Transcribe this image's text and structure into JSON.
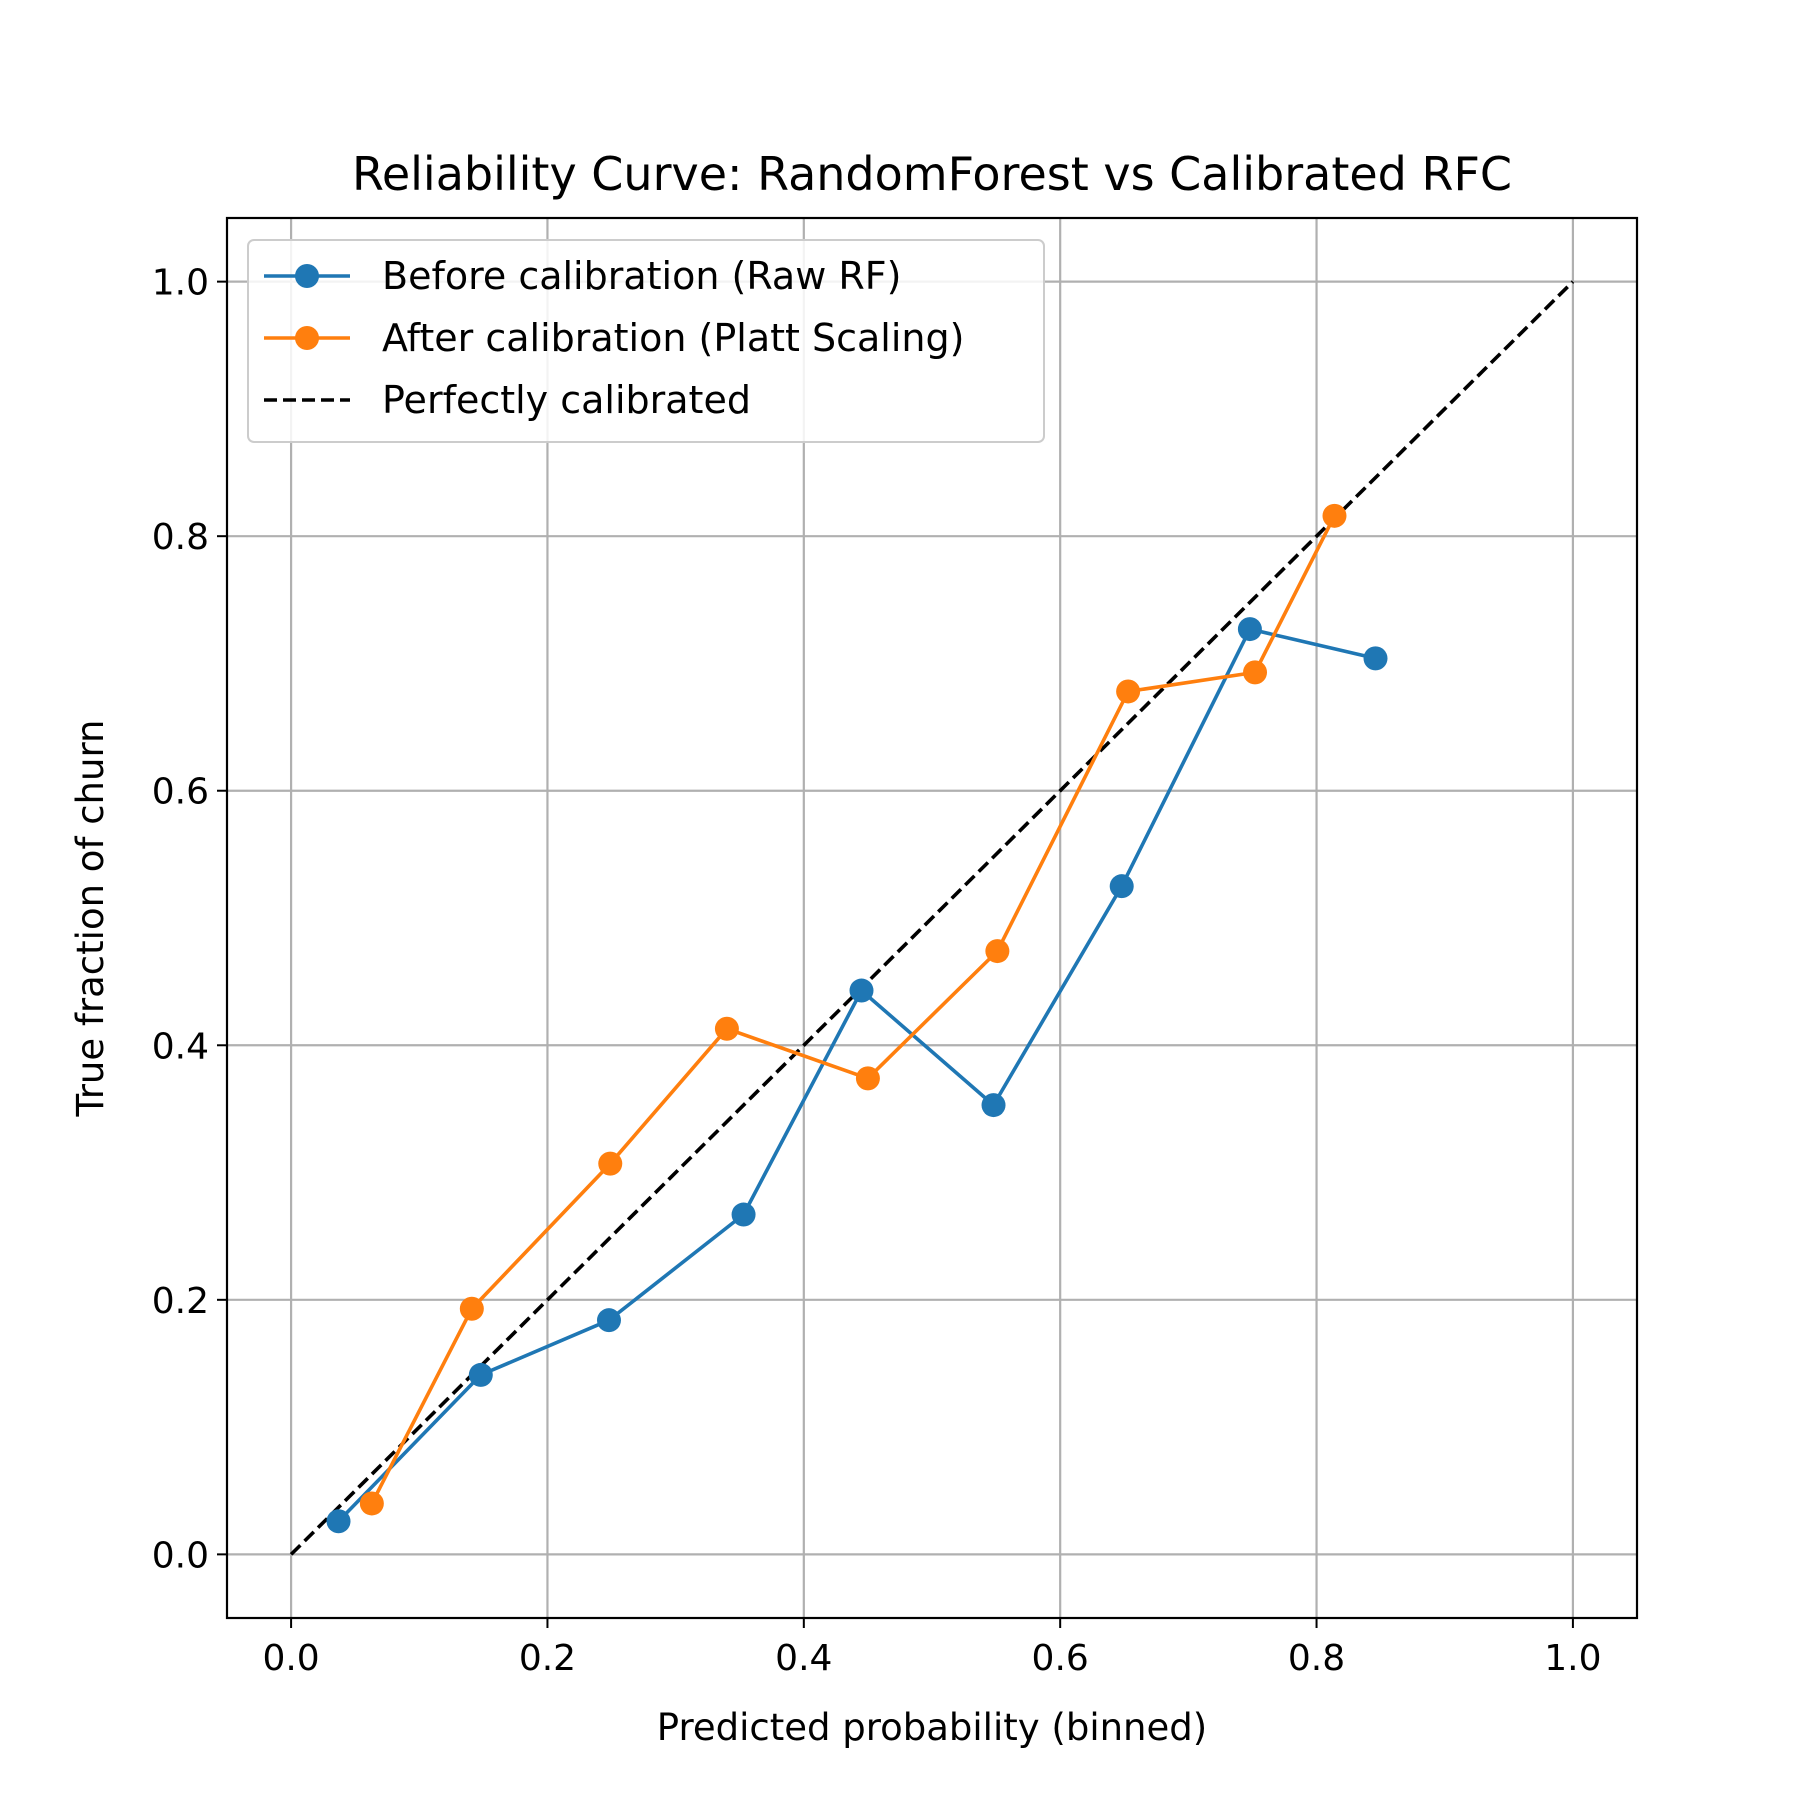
{
  "chart_data": {
    "type": "line",
    "title": "Reliability Curve: RandomForest vs Calibrated RFC",
    "xlabel": "Predicted probability (binned)",
    "ylabel": "True fraction of churn",
    "xlim": [
      -0.05,
      1.05
    ],
    "ylim": [
      -0.05,
      1.05
    ],
    "xticks": [
      "0.0",
      "0.2",
      "0.4",
      "0.6",
      "0.8",
      "1.0"
    ],
    "yticks": [
      "0.0",
      "0.2",
      "0.4",
      "0.6",
      "0.8",
      "1.0"
    ],
    "grid": true,
    "legend_position": "top-left",
    "series": [
      {
        "name": "Before calibration (Raw RF)",
        "color": "#1f77b4",
        "marker": "circle",
        "x": [
          0.037,
          0.148,
          0.248,
          0.353,
          0.445,
          0.548,
          0.648,
          0.748,
          0.846
        ],
        "y": [
          0.026,
          0.141,
          0.184,
          0.267,
          0.443,
          0.353,
          0.525,
          0.727,
          0.704
        ]
      },
      {
        "name": "After calibration (Platt Scaling)",
        "color": "#ff7f0e",
        "marker": "circle",
        "x": [
          0.063,
          0.141,
          0.249,
          0.34,
          0.45,
          0.551,
          0.653,
          0.752,
          0.814
        ],
        "y": [
          0.04,
          0.193,
          0.307,
          0.413,
          0.374,
          0.474,
          0.678,
          0.693,
          0.816
        ]
      },
      {
        "name": "Perfectly calibrated",
        "color": "#000000",
        "style": "dashed",
        "x": [
          0,
          1
        ],
        "y": [
          0,
          1
        ]
      }
    ]
  }
}
